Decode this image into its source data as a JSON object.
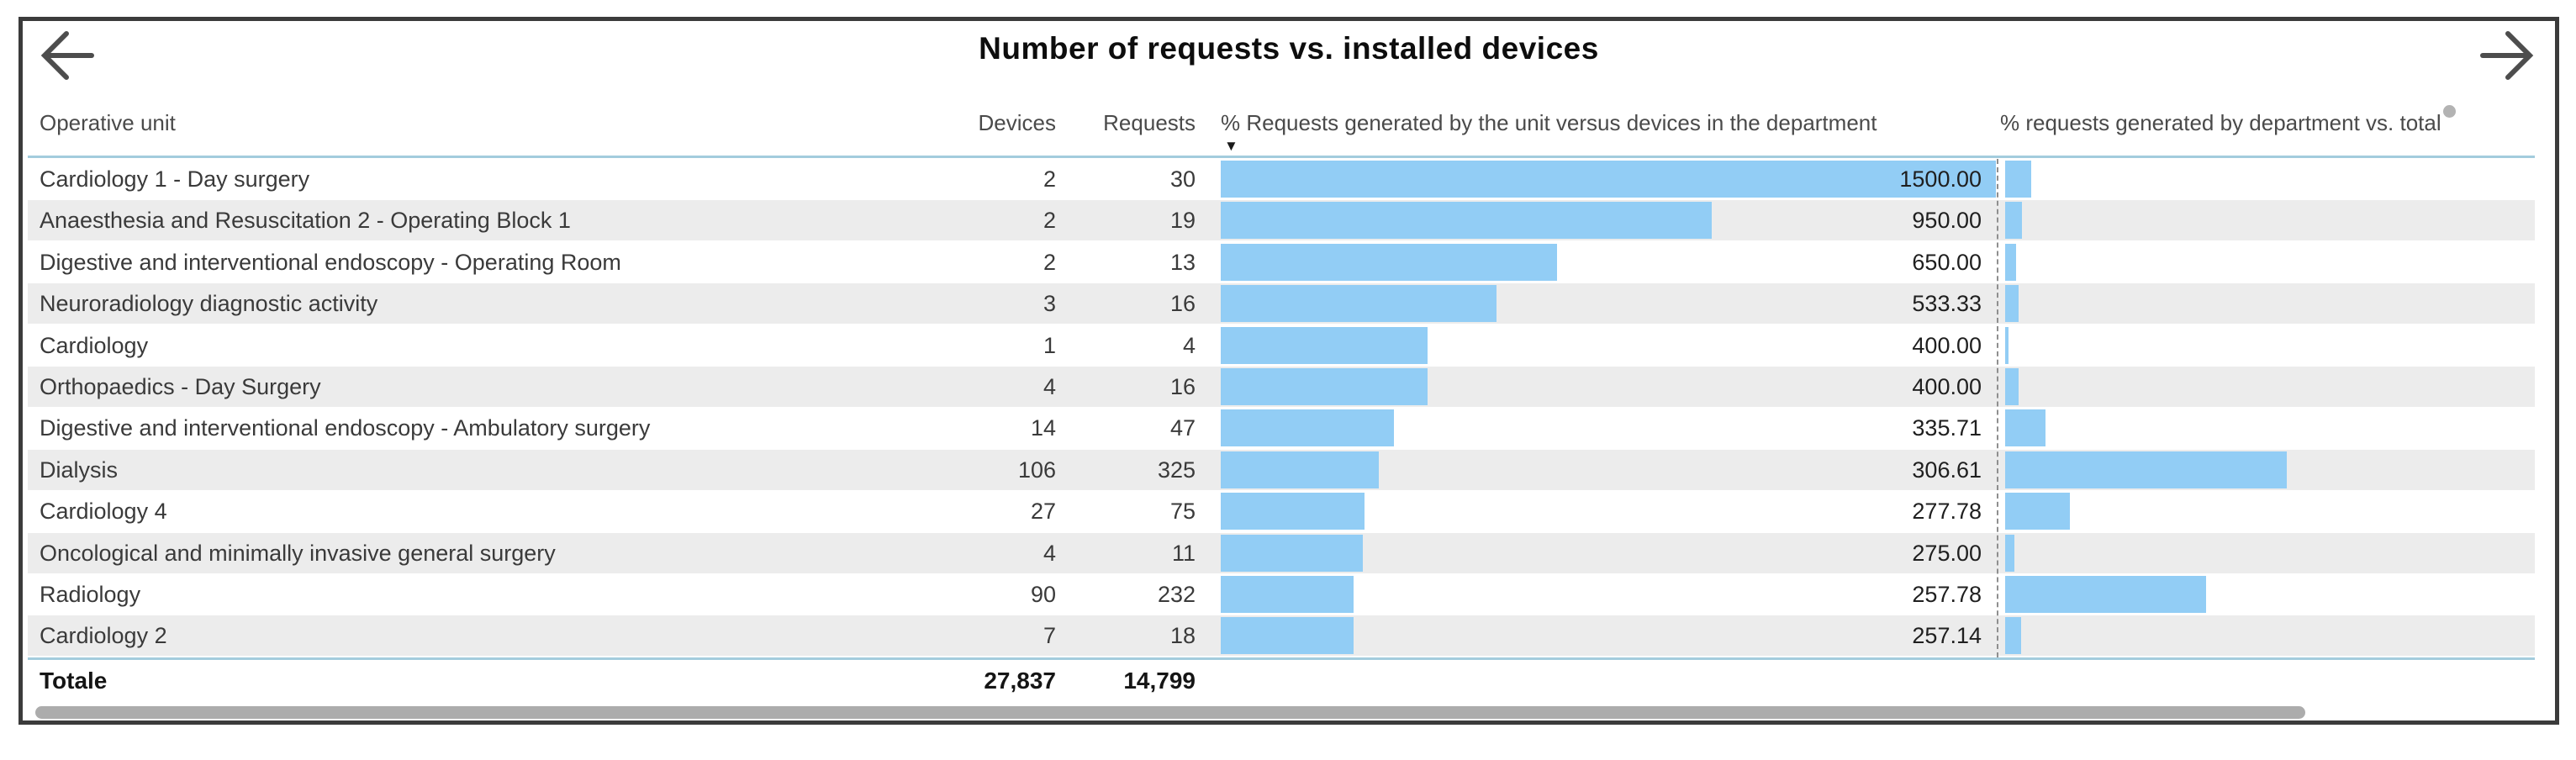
{
  "title": "Number of requests vs. installed devices",
  "nav": {
    "back_label": "previous page",
    "forward_label": "next page"
  },
  "colors": {
    "bar": "#92cdf5",
    "stripe": "#ececec",
    "rule": "#a3ccdd",
    "frame_border": "#3b3b3b",
    "scrollbar": "#acacac",
    "header_dot": "#b3b3b3"
  },
  "table": {
    "columns": [
      "Operative unit",
      "Devices",
      "Requests",
      "% Requests generated by the unit versus devices in the department",
      "% requests generated by department vs. total"
    ],
    "sort": {
      "column": "% Requests generated by the unit versus devices in the department",
      "direction": "descending",
      "caret": "▼"
    },
    "rows": [
      {
        "unit": "Cardiology 1 - Day surgery",
        "devices": "2",
        "requests": "30",
        "requests_value": 30,
        "pct": "1500.00",
        "pct_value": 1500.0
      },
      {
        "unit": "Anaesthesia and Resuscitation 2 - Operating Block 1",
        "devices": "2",
        "requests": "19",
        "requests_value": 19,
        "pct": "950.00",
        "pct_value": 950.0
      },
      {
        "unit": "Digestive and interventional endoscopy - Operating Room",
        "devices": "2",
        "requests": "13",
        "requests_value": 13,
        "pct": "650.00",
        "pct_value": 650.0
      },
      {
        "unit": "Neuroradiology diagnostic activity",
        "devices": "3",
        "requests": "16",
        "requests_value": 16,
        "pct": "533.33",
        "pct_value": 533.33
      },
      {
        "unit": "Cardiology",
        "devices": "1",
        "requests": "4",
        "requests_value": 4,
        "pct": "400.00",
        "pct_value": 400.0
      },
      {
        "unit": "Orthopaedics - Day Surgery",
        "devices": "4",
        "requests": "16",
        "requests_value": 16,
        "pct": "400.00",
        "pct_value": 400.0
      },
      {
        "unit": "Digestive and interventional endoscopy - Ambulatory surgery",
        "devices": "14",
        "requests": "47",
        "requests_value": 47,
        "pct": "335.71",
        "pct_value": 335.71
      },
      {
        "unit": "Dialysis",
        "devices": "106",
        "requests": "325",
        "requests_value": 325,
        "pct": "306.61",
        "pct_value": 306.61
      },
      {
        "unit": "Cardiology 4",
        "devices": "27",
        "requests": "75",
        "requests_value": 75,
        "pct": "277.78",
        "pct_value": 277.78
      },
      {
        "unit": "Oncological and minimally invasive general surgery",
        "devices": "4",
        "requests": "11",
        "requests_value": 11,
        "pct": "275.00",
        "pct_value": 275.0
      },
      {
        "unit": "Radiology",
        "devices": "90",
        "requests": "232",
        "requests_value": 232,
        "pct": "257.78",
        "pct_value": 257.78
      },
      {
        "unit": "Cardiology 2",
        "devices": "7",
        "requests": "18",
        "requests_value": 18,
        "pct": "257.14",
        "pct_value": 257.14
      }
    ],
    "total": {
      "label": "Totale",
      "devices": "27,837",
      "requests": "14,799"
    }
  },
  "chart_data": {
    "type": "table",
    "title": "Number of requests vs. installed devices",
    "columns": [
      "Operative unit",
      "Devices",
      "Requests",
      "% Requests generated by the unit versus devices in the department",
      "% requests generated by department vs. total"
    ],
    "units": [
      "Cardiology 1 - Day surgery",
      "Anaesthesia and Resuscitation 2 - Operating Block 1",
      "Digestive and interventional endoscopy - Operating Room",
      "Neuroradiology diagnostic activity",
      "Cardiology",
      "Orthopaedics - Day Surgery",
      "Digestive and interventional endoscopy - Ambulatory surgery",
      "Dialysis",
      "Cardiology 4",
      "Oncological and minimally invasive general surgery",
      "Radiology",
      "Cardiology 2"
    ],
    "devices": [
      2,
      2,
      2,
      3,
      1,
      4,
      14,
      106,
      27,
      4,
      90,
      7
    ],
    "requests": [
      30,
      19,
      13,
      16,
      4,
      16,
      47,
      325,
      75,
      11,
      232,
      18
    ],
    "pct_requests_vs_devices": [
      1500.0,
      950.0,
      650.0,
      533.33,
      400.0,
      400.0,
      335.71,
      306.61,
      277.78,
      275.0,
      257.78,
      257.14
    ],
    "totals": {
      "label": "Totale",
      "devices": 27837,
      "requests": 14799
    },
    "sort": {
      "column": "% Requests generated by the unit versus devices in the department",
      "direction": "descending"
    },
    "layout_hints": {
      "bar_color": "#92cdf5",
      "unit_pct_bars_axis_max": 1500,
      "dept_share_bars_proportional_to": "requests",
      "dept_share_values_clipped_offscreen": true,
      "row_striping": "alternating white / light gray"
    }
  }
}
